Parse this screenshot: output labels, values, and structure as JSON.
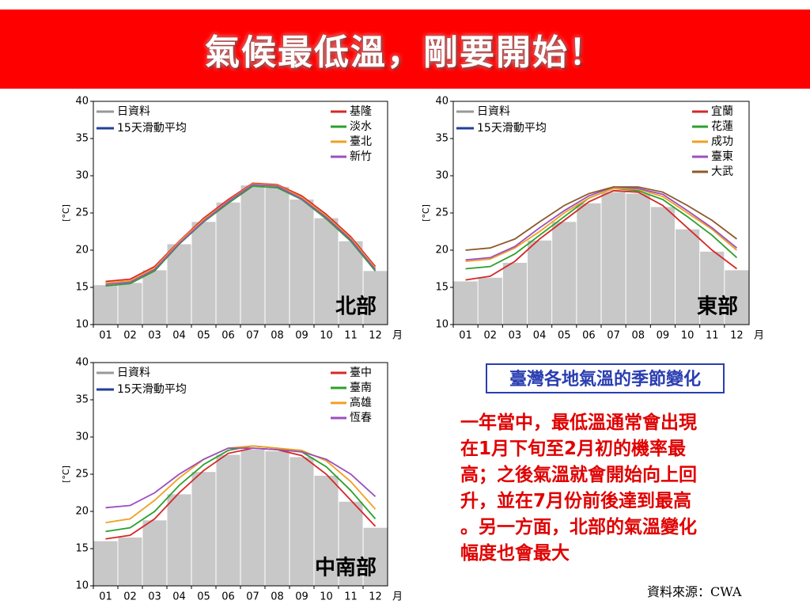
{
  "header": {
    "title": "氣候最低溫，剛要開始！"
  },
  "chart_data": [
    {
      "type": "line",
      "region_label": "北部",
      "y_label": "[°C]",
      "x_unit": "月",
      "categories": [
        "01",
        "02",
        "03",
        "04",
        "05",
        "06",
        "07",
        "08",
        "09",
        "10",
        "11",
        "12"
      ],
      "ylim": [
        10,
        40
      ],
      "yticks": [
        10,
        15,
        20,
        25,
        30,
        35,
        40
      ],
      "legend_notes": [
        {
          "label": "15天滑動平均",
          "color": "#1f3f99"
        }
      ],
      "series": [
        {
          "name": "日資料",
          "color": "#c8c8c8",
          "style": "bar",
          "values": [
            15.3,
            15.6,
            17.3,
            20.8,
            23.8,
            26.4,
            28.7,
            28.5,
            26.8,
            24.3,
            21.2,
            17.2
          ]
        },
        {
          "name": "基隆",
          "color": "#d62728",
          "values": [
            15.8,
            16.1,
            17.8,
            21.2,
            24.3,
            26.8,
            29.0,
            28.8,
            27.3,
            24.8,
            21.8,
            17.8
          ]
        },
        {
          "name": "淡水",
          "color": "#2ca02c",
          "values": [
            15.2,
            15.5,
            17.2,
            20.8,
            23.8,
            26.3,
            28.6,
            28.4,
            26.8,
            24.2,
            21.2,
            17.2
          ]
        },
        {
          "name": "臺北",
          "color": "#f0a020",
          "values": [
            15.6,
            15.9,
            17.6,
            21.1,
            24.1,
            26.6,
            28.9,
            28.7,
            27.1,
            24.6,
            21.6,
            17.6
          ]
        },
        {
          "name": "新竹",
          "color": "#9b4fc0",
          "values": [
            15.4,
            15.7,
            17.4,
            20.9,
            23.9,
            26.5,
            28.8,
            28.6,
            26.9,
            24.4,
            21.4,
            17.4
          ]
        }
      ]
    },
    {
      "type": "line",
      "region_label": "東部",
      "y_label": "[°C]",
      "x_unit": "月",
      "categories": [
        "01",
        "02",
        "03",
        "04",
        "05",
        "06",
        "07",
        "08",
        "09",
        "10",
        "11",
        "12"
      ],
      "ylim": [
        10,
        40
      ],
      "yticks": [
        10,
        15,
        20,
        25,
        30,
        35,
        40
      ],
      "legend_notes": [
        {
          "label": "15天滑動平均",
          "color": "#1f3f99"
        }
      ],
      "series": [
        {
          "name": "日資料",
          "color": "#c8c8c8",
          "style": "bar",
          "values": [
            15.8,
            16.3,
            18.3,
            21.3,
            23.8,
            26.3,
            27.8,
            27.6,
            25.8,
            22.8,
            19.8,
            17.3
          ]
        },
        {
          "name": "宜蘭",
          "color": "#d62728",
          "values": [
            16.0,
            16.5,
            18.5,
            21.5,
            24.0,
            26.5,
            28.0,
            27.8,
            26.0,
            23.0,
            20.0,
            17.5
          ]
        },
        {
          "name": "花蓮",
          "color": "#2ca02c",
          "values": [
            17.5,
            17.8,
            19.5,
            22.0,
            24.5,
            27.0,
            28.3,
            28.0,
            26.8,
            24.5,
            22.0,
            19.0
          ]
        },
        {
          "name": "成功",
          "color": "#f0a020",
          "values": [
            18.5,
            18.8,
            20.3,
            22.5,
            25.0,
            27.0,
            28.3,
            28.2,
            27.2,
            25.0,
            22.8,
            20.0
          ]
        },
        {
          "name": "臺東",
          "color": "#9b4fc0",
          "values": [
            18.7,
            19.0,
            20.5,
            23.0,
            25.3,
            27.3,
            28.5,
            28.3,
            27.5,
            25.3,
            23.0,
            20.3
          ]
        },
        {
          "name": "大武",
          "color": "#8c5a2b",
          "values": [
            20.0,
            20.3,
            21.5,
            23.8,
            26.0,
            27.6,
            28.5,
            28.5,
            27.8,
            26.0,
            24.0,
            21.5
          ]
        }
      ]
    },
    {
      "type": "line",
      "region_label": "中南部",
      "y_label": "[°C]",
      "x_unit": "月",
      "categories": [
        "01",
        "02",
        "03",
        "04",
        "05",
        "06",
        "07",
        "08",
        "09",
        "10",
        "11",
        "12"
      ],
      "ylim": [
        10,
        40
      ],
      "yticks": [
        10,
        15,
        20,
        25,
        30,
        35,
        40
      ],
      "legend_notes": [
        {
          "label": "15天滑動平均",
          "color": "#1f3f99"
        }
      ],
      "series": [
        {
          "name": "日資料",
          "color": "#c8c8c8",
          "style": "bar",
          "values": [
            16.0,
            16.5,
            18.8,
            22.3,
            25.3,
            27.6,
            28.3,
            28.1,
            27.3,
            24.8,
            21.3,
            17.8
          ]
        },
        {
          "name": "臺中",
          "color": "#d62728",
          "values": [
            16.3,
            16.8,
            19.0,
            22.5,
            25.5,
            27.8,
            28.5,
            28.3,
            27.5,
            25.0,
            21.5,
            18.0
          ]
        },
        {
          "name": "臺南",
          "color": "#2ca02c",
          "values": [
            17.3,
            17.8,
            20.0,
            23.5,
            26.3,
            28.2,
            28.8,
            28.5,
            28.0,
            26.0,
            22.8,
            19.0
          ]
        },
        {
          "name": "高雄",
          "color": "#f0a020",
          "values": [
            18.5,
            19.0,
            21.5,
            24.5,
            27.0,
            28.5,
            28.8,
            28.5,
            28.2,
            26.8,
            24.0,
            20.3
          ]
        },
        {
          "name": "恆春",
          "color": "#9b4fc0",
          "values": [
            20.5,
            20.8,
            22.5,
            25.0,
            27.0,
            28.5,
            28.5,
            28.3,
            28.0,
            27.0,
            25.0,
            22.0
          ]
        }
      ]
    }
  ],
  "note": {
    "box_title": "臺灣各地氣溫的季節變化",
    "lines": [
      "一年當中，最低溫通常會出現",
      "在1月下旬至2月初的機率最",
      "高；之後氣溫就會開始向上回",
      "升，並在7月份前後達到最高",
      "。另一方面，北部的氣溫變化",
      "幅度也會最大"
    ],
    "source": "資料來源：CWA"
  }
}
